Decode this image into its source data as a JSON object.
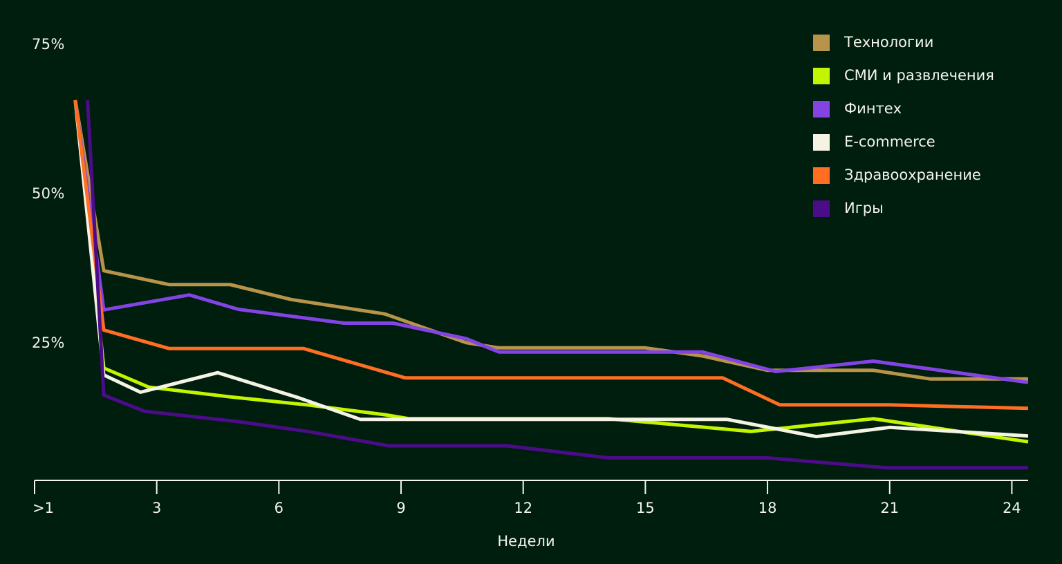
{
  "chart_data": {
    "type": "line",
    "title": "",
    "xlabel": "Недели",
    "ylabel": "",
    "xlim": [
      0,
      24.4
    ],
    "ylim": [
      0,
      75
    ],
    "grid": false,
    "legend_position": "top-right",
    "x_ticks": [
      {
        "value": 0,
        "label": ">1"
      },
      {
        "value": 3,
        "label": "3"
      },
      {
        "value": 6,
        "label": "6"
      },
      {
        "value": 9,
        "label": "9"
      },
      {
        "value": 12,
        "label": "12"
      },
      {
        "value": 15,
        "label": "15"
      },
      {
        "value": 18,
        "label": "18"
      },
      {
        "value": 21,
        "label": "21"
      },
      {
        "value": 24,
        "label": "24"
      }
    ],
    "y_ticks": [
      {
        "value": 75,
        "label": "75%"
      },
      {
        "value": 50,
        "label": "50%"
      },
      {
        "value": 25,
        "label": "25%"
      }
    ],
    "series": [
      {
        "name": "Технологии",
        "color": "#b8944b",
        "points": [
          [
            1,
            66
          ],
          [
            1.7,
            36.4
          ],
          [
            3.3,
            34
          ],
          [
            4.8,
            34
          ],
          [
            6.3,
            31.4
          ],
          [
            8.6,
            28.9
          ],
          [
            10.6,
            23.9
          ],
          [
            11.4,
            23
          ],
          [
            15,
            23
          ],
          [
            16.4,
            21.6
          ],
          [
            18,
            19.1
          ],
          [
            20.6,
            19.1
          ],
          [
            22,
            17.6
          ],
          [
            24.4,
            17.6
          ]
        ]
      },
      {
        "name": "СМИ и развлечения",
        "color": "#c4f500",
        "points": [
          [
            1,
            66
          ],
          [
            1.7,
            19.5
          ],
          [
            2.8,
            16.2
          ],
          [
            4.8,
            14.5
          ],
          [
            6.7,
            13.1
          ],
          [
            8.6,
            11.4
          ],
          [
            9.2,
            10.7
          ],
          [
            14.1,
            10.7
          ],
          [
            17.6,
            8.5
          ],
          [
            20.6,
            10.7
          ],
          [
            24.4,
            6.7
          ]
        ]
      },
      {
        "name": "Финтех",
        "color": "#8344e3",
        "points": [
          [
            1,
            66
          ],
          [
            1.7,
            29.6
          ],
          [
            3.8,
            32.2
          ],
          [
            5,
            29.7
          ],
          [
            7.6,
            27.3
          ],
          [
            8.8,
            27.3
          ],
          [
            10.6,
            24.6
          ],
          [
            11.4,
            22.3
          ],
          [
            16.4,
            22.3
          ],
          [
            18.2,
            18.9
          ],
          [
            20.6,
            20.7
          ],
          [
            24.4,
            17
          ]
        ]
      },
      {
        "name": "E-commerce",
        "color": "#f5f4e4",
        "points": [
          [
            1,
            66
          ],
          [
            1.7,
            18.3
          ],
          [
            2.6,
            15.3
          ],
          [
            4.5,
            18.7
          ],
          [
            6.5,
            14.3
          ],
          [
            8,
            10.6
          ],
          [
            17,
            10.6
          ],
          [
            19.2,
            7.6
          ],
          [
            21,
            9.2
          ],
          [
            24.4,
            7.7
          ]
        ]
      },
      {
        "name": "Здравоохранение",
        "color": "#ff6e22",
        "points": [
          [
            1,
            66
          ],
          [
            1.7,
            26.1
          ],
          [
            3.3,
            22.9
          ],
          [
            6.6,
            22.9
          ],
          [
            9.1,
            17.8
          ],
          [
            16.9,
            17.8
          ],
          [
            18.3,
            13.1
          ],
          [
            21,
            13.1
          ],
          [
            24.4,
            12.5
          ]
        ]
      },
      {
        "name": "Игры",
        "color": "#4b0c88",
        "points": [
          [
            1.3,
            66
          ],
          [
            1.7,
            14.8
          ],
          [
            2.7,
            12
          ],
          [
            5,
            10.2
          ],
          [
            6.7,
            8.5
          ],
          [
            8.7,
            6
          ],
          [
            11.6,
            6
          ],
          [
            14.1,
            3.9
          ],
          [
            18,
            3.9
          ],
          [
            20.9,
            2.2
          ],
          [
            24.4,
            2.2
          ]
        ]
      }
    ]
  }
}
